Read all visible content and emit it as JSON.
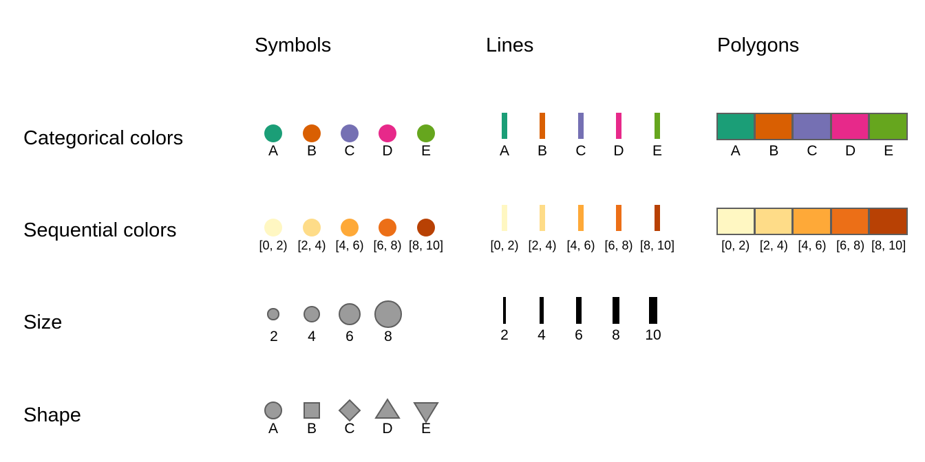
{
  "column_headers": {
    "symbols": "Symbols",
    "lines": "Lines",
    "polygons": "Polygons"
  },
  "row_headers": {
    "categorical": "Categorical colors",
    "sequential": "Sequential colors",
    "size": "Size",
    "shape": "Shape"
  },
  "categorical": {
    "labels": [
      "A",
      "B",
      "C",
      "D",
      "E"
    ],
    "colors": [
      "#1b9e77",
      "#d95f02",
      "#7570b3",
      "#e7298a",
      "#66a61e"
    ]
  },
  "sequential": {
    "labels": [
      "[0, 2)",
      "[2, 4)",
      "[4, 6)",
      "[6, 8)",
      "[8, 10]"
    ],
    "colors": [
      "#fff7c2",
      "#fedc88",
      "#fea938",
      "#ec6f17",
      "#b84104"
    ]
  },
  "size": {
    "symbol_labels": [
      "2",
      "4",
      "6",
      "8"
    ],
    "symbol_values": [
      2,
      4,
      6,
      8
    ],
    "line_labels": [
      "2",
      "4",
      "6",
      "8",
      "10"
    ],
    "line_values": [
      2,
      4,
      6,
      8,
      10
    ],
    "symbol_color": "#9b9b9b",
    "line_color": "#000000"
  },
  "shape": {
    "labels": [
      "A",
      "B",
      "C",
      "D",
      "E"
    ],
    "shapes": [
      "circle",
      "square",
      "diamond",
      "triangle-up",
      "triangle-down"
    ],
    "fill": "#9b9b9b",
    "stroke": "#5e5e5e"
  }
}
